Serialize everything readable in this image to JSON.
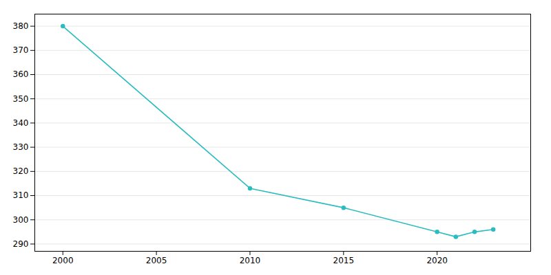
{
  "chart_data": {
    "type": "line",
    "x": [
      2000,
      2010,
      2015,
      2020,
      2021,
      2022,
      2023
    ],
    "values": [
      380,
      313,
      305,
      295,
      293,
      295,
      296
    ],
    "color": "#2bbcbf",
    "marker": "o",
    "xlim": [
      1998.5,
      2025
    ],
    "xticks": [
      2000,
      2005,
      2010,
      2015,
      2020
    ],
    "ylim": [
      287,
      385
    ],
    "yticks": [
      290,
      300,
      310,
      320,
      330,
      340,
      350,
      360,
      370,
      380
    ],
    "grid": true
  }
}
